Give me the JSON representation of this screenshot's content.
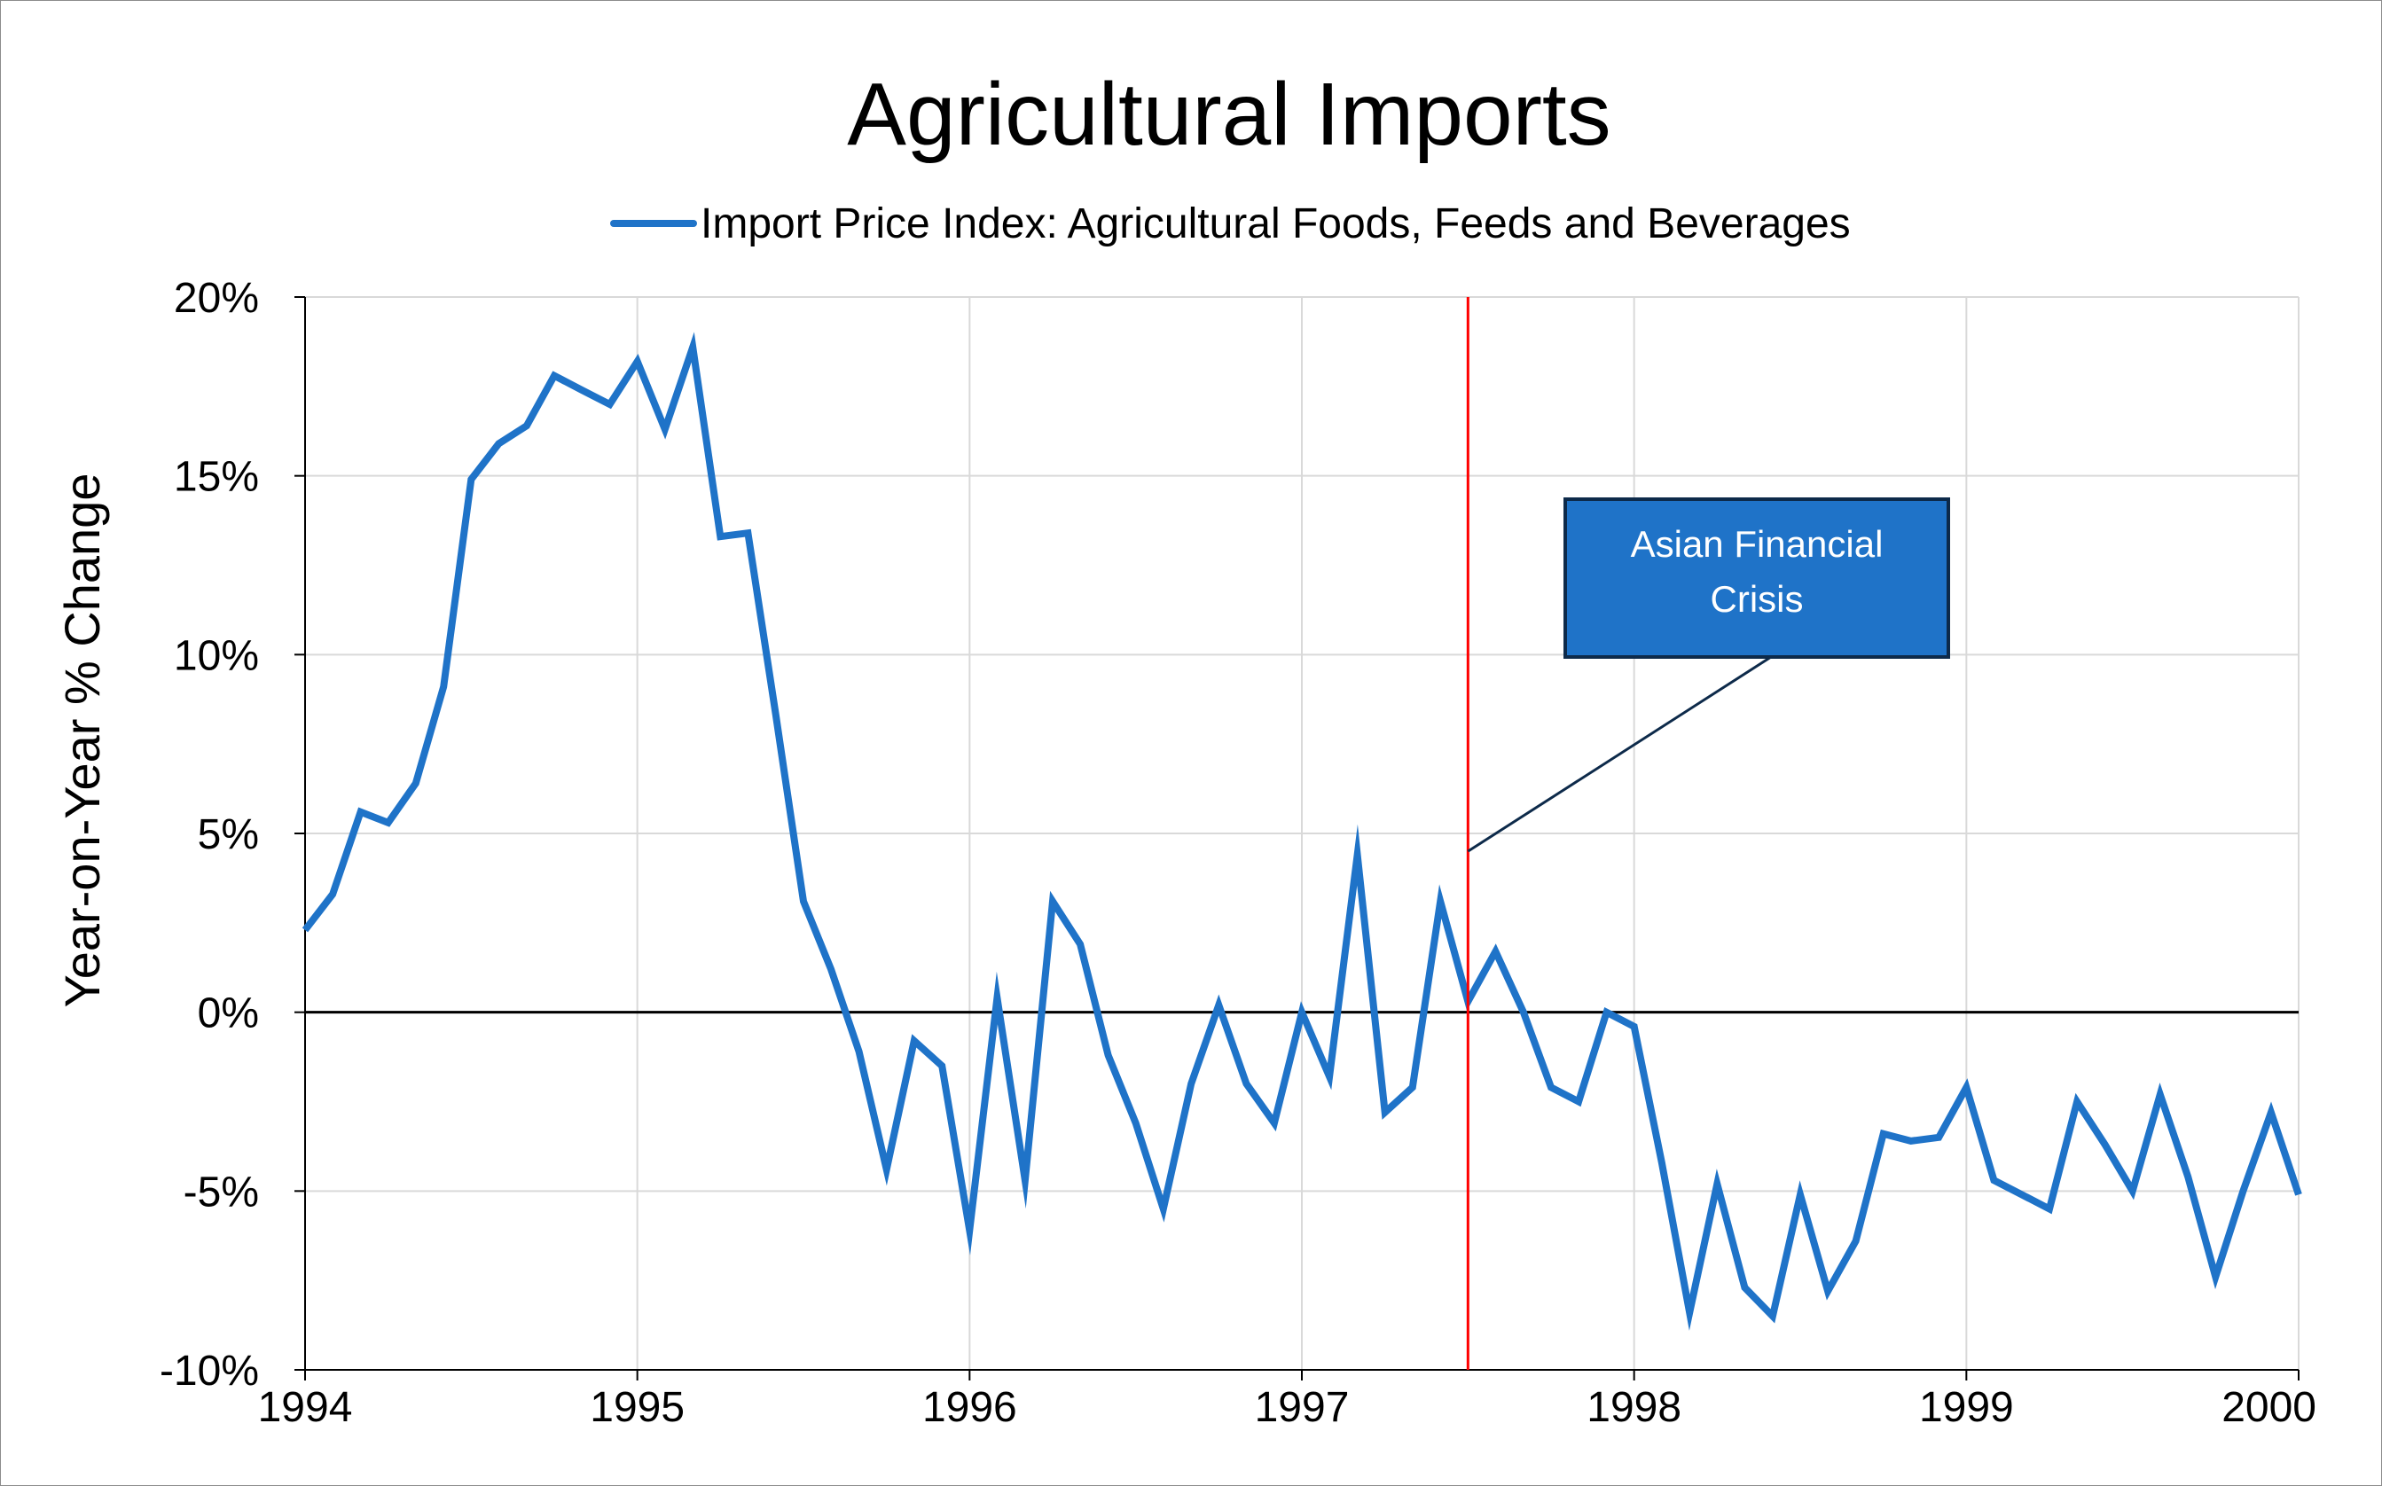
{
  "chart_data": {
    "type": "line",
    "title": "Agricultural Imports",
    "xlabel": "",
    "ylabel": "Year-on-Year % Change",
    "xlim": [
      1994,
      2000
    ],
    "ylim": [
      -10,
      20
    ],
    "x_ticks": [
      1994,
      1995,
      1996,
      1997,
      1998,
      1999,
      2000
    ],
    "y_ticks": [
      -10,
      -5,
      0,
      5,
      10,
      15,
      20
    ],
    "y_tick_labels": [
      "-10%",
      "-5%",
      "0%",
      "5%",
      "10%",
      "15%",
      "20%"
    ],
    "grid": true,
    "legend_position": "top",
    "series": [
      {
        "name": "Import Price Index: Agricultural Foods, Feeds and Beverages",
        "color": "#1f73c8",
        "x": [
          1994.0,
          1994.083,
          1994.167,
          1994.25,
          1994.333,
          1994.417,
          1994.5,
          1994.583,
          1994.667,
          1994.75,
          1994.833,
          1994.917,
          1995.0,
          1995.083,
          1995.167,
          1995.25,
          1995.333,
          1995.417,
          1995.5,
          1995.583,
          1995.667,
          1995.75,
          1995.833,
          1995.917,
          1996.0,
          1996.083,
          1996.167,
          1996.25,
          1996.333,
          1996.417,
          1996.5,
          1996.583,
          1996.667,
          1996.75,
          1996.833,
          1996.917,
          1997.0,
          1997.083,
          1997.167,
          1997.25,
          1997.333,
          1997.417,
          1997.5,
          1997.583,
          1997.667,
          1997.75,
          1997.833,
          1997.917,
          1998.0,
          1998.083,
          1998.167,
          1998.25,
          1998.333,
          1998.417,
          1998.5,
          1998.583,
          1998.667,
          1998.75,
          1998.833,
          1998.917,
          1999.0,
          1999.083,
          1999.167,
          1999.25,
          1999.333,
          1999.417,
          1999.5,
          1999.583,
          1999.667,
          1999.75,
          1999.833,
          1999.917,
          2000.0
        ],
        "y": [
          2.3,
          3.3,
          5.6,
          5.3,
          6.4,
          9.1,
          14.9,
          15.9,
          16.4,
          17.8,
          17.4,
          17.0,
          18.2,
          16.3,
          18.6,
          13.3,
          13.4,
          8.3,
          3.1,
          1.2,
          -1.1,
          -4.4,
          -0.8,
          -1.5,
          -6.1,
          0.4,
          -4.7,
          3.1,
          1.9,
          -1.2,
          -3.1,
          -5.5,
          -2.0,
          0.2,
          -2.0,
          -3.1,
          0.0,
          -1.8,
          4.4,
          -2.8,
          -2.1,
          3.1,
          0.3,
          1.7,
          0.0,
          -2.1,
          -2.5,
          0.0,
          -0.4,
          -4.2,
          -8.4,
          -4.8,
          -7.7,
          -8.5,
          -5.1,
          -7.8,
          -6.4,
          -3.4,
          -3.6,
          -3.5,
          -2.1,
          -4.7,
          -5.1,
          -5.5,
          -2.5,
          -3.7,
          -5.0,
          -2.3,
          -4.6,
          -7.4,
          -5.0,
          -2.8,
          -5.1
        ]
      }
    ],
    "reference_line": {
      "x": 1997.5,
      "color": "#ff0000"
    },
    "annotation": {
      "lines": [
        "Asian Financial",
        "Crisis"
      ],
      "fill": "#1f73c8",
      "border": "#0d2a4a",
      "pointer_x": 1997.5,
      "pointer_y": 4.5
    }
  }
}
